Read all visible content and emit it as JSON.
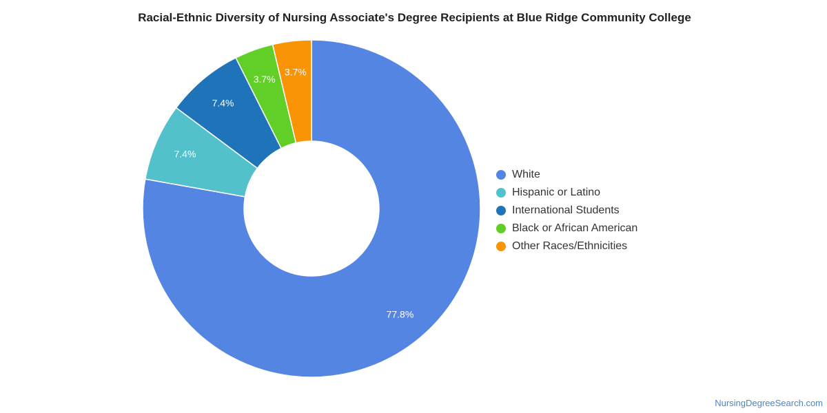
{
  "chart_data": {
    "type": "pie",
    "title": "Racial-Ethnic Diversity of Nursing Associate's Degree Recipients at Blue Ridge Community College",
    "donut": true,
    "legend_position": "right",
    "slices": [
      {
        "label": "White",
        "value": 77.8,
        "display": "77.8%",
        "color": "#5585e3"
      },
      {
        "label": "Hispanic or Latino",
        "value": 7.4,
        "display": "7.4%",
        "color": "#52c1cc"
      },
      {
        "label": "International Students",
        "value": 7.4,
        "display": "7.4%",
        "color": "#1f73b8"
      },
      {
        "label": "Black or African American",
        "value": 3.7,
        "display": "3.7%",
        "color": "#62ce28"
      },
      {
        "label": "Other Races/Ethnicities",
        "value": 3.7,
        "display": "3.7%",
        "color": "#f99406"
      }
    ]
  },
  "credit": "NursingDegreeSearch.com"
}
